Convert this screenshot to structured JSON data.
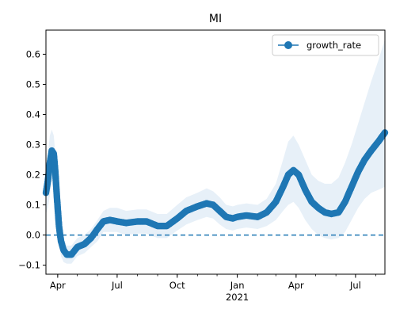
{
  "chart_data": {
    "type": "line",
    "title": "MI",
    "xlabel": "",
    "ylabel": "",
    "x_range": [
      "2020-03-14",
      "2021-08-15"
    ],
    "ylim": [
      -0.13,
      0.68
    ],
    "grid": false,
    "legend_position": "top-right",
    "x_tick_labels": [
      {
        "date": "2020-04-01",
        "label": "Apr",
        "sub": ""
      },
      {
        "date": "2020-07-01",
        "label": "Jul",
        "sub": ""
      },
      {
        "date": "2020-10-01",
        "label": "Oct",
        "sub": ""
      },
      {
        "date": "2021-01-01",
        "label": "Jan",
        "sub": "2021"
      },
      {
        "date": "2021-04-01",
        "label": "Apr",
        "sub": ""
      },
      {
        "date": "2021-07-01",
        "label": "Jul",
        "sub": ""
      }
    ],
    "y_ticks": [
      -0.1,
      0.0,
      0.1,
      0.2,
      0.3,
      0.4,
      0.5,
      0.6
    ],
    "y_tick_labels": [
      "−0.1",
      "0.0",
      "0.1",
      "0.2",
      "0.3",
      "0.4",
      "0.5",
      "0.6"
    ],
    "reference_line": {
      "y": 0.0,
      "style": "dashed"
    },
    "series": [
      {
        "name": "growth_rate",
        "color": "#1f77b4",
        "band_color": "#e7f0f8",
        "points": [
          {
            "x": "2020-03-14",
            "y": 0.14,
            "lo": 0.07,
            "hi": 0.22
          },
          {
            "x": "2020-03-17",
            "y": 0.18,
            "lo": 0.09,
            "hi": 0.27
          },
          {
            "x": "2020-03-20",
            "y": 0.24,
            "lo": 0.13,
            "hi": 0.33
          },
          {
            "x": "2020-03-23",
            "y": 0.28,
            "lo": 0.18,
            "hi": 0.35
          },
          {
            "x": "2020-03-26",
            "y": 0.27,
            "lo": 0.18,
            "hi": 0.33
          },
          {
            "x": "2020-03-28",
            "y": 0.22,
            "lo": 0.14,
            "hi": 0.28
          },
          {
            "x": "2020-03-31",
            "y": 0.12,
            "lo": 0.05,
            "hi": 0.18
          },
          {
            "x": "2020-04-03",
            "y": 0.03,
            "lo": -0.03,
            "hi": 0.08
          },
          {
            "x": "2020-04-06",
            "y": -0.02,
            "lo": -0.07,
            "hi": 0.02
          },
          {
            "x": "2020-04-10",
            "y": -0.05,
            "lo": -0.09,
            "hi": -0.01
          },
          {
            "x": "2020-04-15",
            "y": -0.065,
            "lo": -0.095,
            "hi": -0.035
          },
          {
            "x": "2020-04-22",
            "y": -0.065,
            "lo": -0.095,
            "hi": -0.035
          },
          {
            "x": "2020-05-01",
            "y": -0.04,
            "lo": -0.07,
            "hi": -0.01
          },
          {
            "x": "2020-05-12",
            "y": -0.03,
            "lo": -0.06,
            "hi": 0.0
          },
          {
            "x": "2020-05-22",
            "y": -0.01,
            "lo": -0.04,
            "hi": 0.02
          },
          {
            "x": "2020-06-01",
            "y": 0.02,
            "lo": -0.02,
            "hi": 0.05
          },
          {
            "x": "2020-06-10",
            "y": 0.045,
            "lo": 0.01,
            "hi": 0.08
          },
          {
            "x": "2020-06-20",
            "y": 0.05,
            "lo": 0.01,
            "hi": 0.09
          },
          {
            "x": "2020-07-01",
            "y": 0.045,
            "lo": 0.01,
            "hi": 0.09
          },
          {
            "x": "2020-07-15",
            "y": 0.04,
            "lo": 0.0,
            "hi": 0.08
          },
          {
            "x": "2020-08-01",
            "y": 0.045,
            "lo": 0.005,
            "hi": 0.085
          },
          {
            "x": "2020-08-15",
            "y": 0.045,
            "lo": 0.005,
            "hi": 0.085
          },
          {
            "x": "2020-09-01",
            "y": 0.03,
            "lo": -0.01,
            "hi": 0.07
          },
          {
            "x": "2020-09-15",
            "y": 0.03,
            "lo": -0.01,
            "hi": 0.07
          },
          {
            "x": "2020-10-01",
            "y": 0.055,
            "lo": 0.015,
            "hi": 0.1
          },
          {
            "x": "2020-10-15",
            "y": 0.08,
            "lo": 0.035,
            "hi": 0.125
          },
          {
            "x": "2020-11-01",
            "y": 0.095,
            "lo": 0.05,
            "hi": 0.14
          },
          {
            "x": "2020-11-15",
            "y": 0.105,
            "lo": 0.06,
            "hi": 0.155
          },
          {
            "x": "2020-11-25",
            "y": 0.1,
            "lo": 0.055,
            "hi": 0.145
          },
          {
            "x": "2020-12-05",
            "y": 0.08,
            "lo": 0.035,
            "hi": 0.125
          },
          {
            "x": "2020-12-15",
            "y": 0.06,
            "lo": 0.02,
            "hi": 0.1
          },
          {
            "x": "2020-12-25",
            "y": 0.055,
            "lo": 0.015,
            "hi": 0.095
          },
          {
            "x": "2021-01-01",
            "y": 0.06,
            "lo": 0.02,
            "hi": 0.1
          },
          {
            "x": "2021-01-15",
            "y": 0.065,
            "lo": 0.025,
            "hi": 0.105
          },
          {
            "x": "2021-02-01",
            "y": 0.06,
            "lo": 0.02,
            "hi": 0.1
          },
          {
            "x": "2021-02-15",
            "y": 0.075,
            "lo": 0.03,
            "hi": 0.12
          },
          {
            "x": "2021-03-01",
            "y": 0.11,
            "lo": 0.05,
            "hi": 0.17
          },
          {
            "x": "2021-03-12",
            "y": 0.16,
            "lo": 0.08,
            "hi": 0.25
          },
          {
            "x": "2021-03-20",
            "y": 0.2,
            "lo": 0.1,
            "hi": 0.31
          },
          {
            "x": "2021-03-28",
            "y": 0.215,
            "lo": 0.11,
            "hi": 0.33
          },
          {
            "x": "2021-04-05",
            "y": 0.2,
            "lo": 0.09,
            "hi": 0.3
          },
          {
            "x": "2021-04-15",
            "y": 0.15,
            "lo": 0.05,
            "hi": 0.25
          },
          {
            "x": "2021-04-25",
            "y": 0.11,
            "lo": 0.02,
            "hi": 0.2
          },
          {
            "x": "2021-05-05",
            "y": 0.09,
            "lo": 0.0,
            "hi": 0.18
          },
          {
            "x": "2021-05-15",
            "y": 0.075,
            "lo": -0.01,
            "hi": 0.17
          },
          {
            "x": "2021-05-25",
            "y": 0.07,
            "lo": -0.015,
            "hi": 0.17
          },
          {
            "x": "2021-06-05",
            "y": 0.075,
            "lo": -0.01,
            "hi": 0.19
          },
          {
            "x": "2021-06-15",
            "y": 0.11,
            "lo": 0.01,
            "hi": 0.24
          },
          {
            "x": "2021-06-25",
            "y": 0.16,
            "lo": 0.05,
            "hi": 0.3
          },
          {
            "x": "2021-07-05",
            "y": 0.21,
            "lo": 0.09,
            "hi": 0.37
          },
          {
            "x": "2021-07-15",
            "y": 0.25,
            "lo": 0.12,
            "hi": 0.44
          },
          {
            "x": "2021-07-25",
            "y": 0.28,
            "lo": 0.14,
            "hi": 0.51
          },
          {
            "x": "2021-08-05",
            "y": 0.31,
            "lo": 0.15,
            "hi": 0.58
          },
          {
            "x": "2021-08-15",
            "y": 0.34,
            "lo": 0.16,
            "hi": 0.65
          }
        ]
      }
    ]
  }
}
